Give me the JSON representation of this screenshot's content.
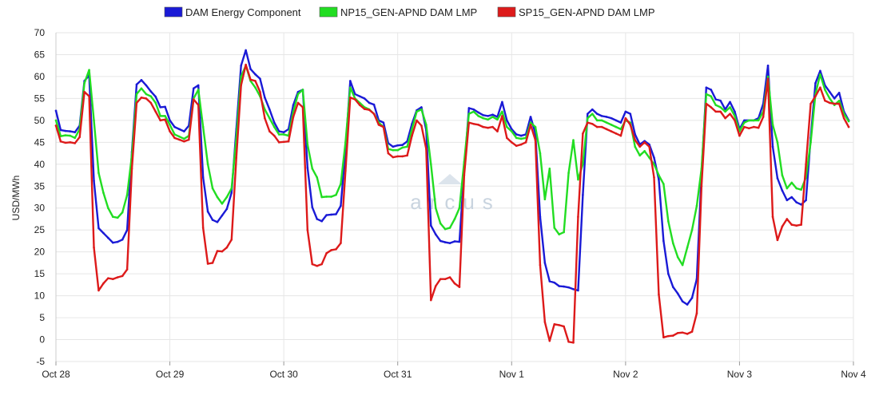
{
  "chart_data": {
    "type": "line",
    "title": "",
    "ylabel": "USD/MWh",
    "xlabel": "",
    "ylim": [
      -5,
      70
    ],
    "yticks": [
      -5,
      0,
      5,
      10,
      15,
      20,
      25,
      30,
      35,
      40,
      45,
      50,
      55,
      60,
      65,
      70
    ],
    "grid": true,
    "legend_position": "top",
    "x_ticks": [
      {
        "label": "Oct 28",
        "hour": 0
      },
      {
        "label": "Oct 29",
        "hour": 24
      },
      {
        "label": "Oct 30",
        "hour": 48
      },
      {
        "label": "Oct 31",
        "hour": 72
      },
      {
        "label": "Nov 1",
        "hour": 96
      },
      {
        "label": "Nov 2",
        "hour": 120
      },
      {
        "label": "Nov 3",
        "hour": 144
      },
      {
        "label": "Nov 4",
        "hour": 168
      }
    ],
    "watermark": "arcus",
    "series": [
      {
        "name": "DAM Energy Component",
        "color": "#1a1ad6",
        "values": [
          52.2,
          47.8,
          47.6,
          47.5,
          47.3,
          48.8,
          59.0,
          60.3,
          36.2,
          25.4,
          24.3,
          23.2,
          22.1,
          22.3,
          22.8,
          25.0,
          42.8,
          58.2,
          59.2,
          58.0,
          56.6,
          55.4,
          53.0,
          53.1,
          50.0,
          48.5,
          48.0,
          47.5,
          48.8,
          57.3,
          58.0,
          37.0,
          29.2,
          27.3,
          26.8,
          28.3,
          29.8,
          33.5,
          48.0,
          62.5,
          66.0,
          61.7,
          60.5,
          59.5,
          55.2,
          52.5,
          49.5,
          47.5,
          47.3,
          48.0,
          53.5,
          56.5,
          57.0,
          39.2,
          30.2,
          27.5,
          27.0,
          28.4,
          28.5,
          28.6,
          30.5,
          43.5,
          59.0,
          56.0,
          55.5,
          55.0,
          54.0,
          53.6,
          50.0,
          49.5,
          44.8,
          44.0,
          44.3,
          44.4,
          45.2,
          49.2,
          52.3,
          53.0,
          47.8,
          26.0,
          24.0,
          22.5,
          22.2,
          22.0,
          22.4,
          22.3,
          38.5,
          52.8,
          52.5,
          51.8,
          51.2,
          51.0,
          51.3,
          50.8,
          54.2,
          50.0,
          48.0,
          46.8,
          46.5,
          46.8,
          50.8,
          47.0,
          28.0,
          17.5,
          13.3,
          13.0,
          12.2,
          12.1,
          11.9,
          11.5,
          11.2,
          33.0,
          51.5,
          52.5,
          51.5,
          51.0,
          50.8,
          50.5,
          50.0,
          49.5,
          52.0,
          51.5,
          46.8,
          44.5,
          45.3,
          44.5,
          41.5,
          36.5,
          22.5,
          15.0,
          12.0,
          10.5,
          8.7,
          8.0,
          9.5,
          13.8,
          38.0,
          57.5,
          57.0,
          54.8,
          54.5,
          52.5,
          54.2,
          52.0,
          48.0,
          50.0,
          50.0,
          50.0,
          50.5,
          53.8,
          62.5,
          44.0,
          36.8,
          34.0,
          31.8,
          32.5,
          31.3,
          30.8,
          31.8,
          46.0,
          58.5,
          61.3,
          58.0,
          56.5,
          55.0,
          56.3,
          52.0,
          50.0
        ]
      },
      {
        "name": "NP15_GEN-APND DAM LMP",
        "color": "#22dd22",
        "values": [
          50.0,
          46.4,
          46.6,
          46.5,
          46.0,
          48.0,
          58.5,
          61.5,
          50.0,
          38.0,
          33.5,
          30.0,
          28.0,
          27.8,
          29.0,
          33.0,
          42.0,
          56.0,
          57.3,
          56.0,
          55.5,
          54.0,
          51.0,
          51.0,
          49.0,
          46.8,
          46.3,
          45.8,
          46.5,
          55.0,
          57.0,
          48.5,
          40.0,
          34.5,
          32.5,
          31.0,
          32.5,
          34.5,
          46.0,
          60.0,
          62.5,
          59.0,
          57.5,
          55.5,
          52.5,
          50.5,
          48.5,
          46.8,
          46.8,
          46.5,
          52.0,
          56.0,
          57.0,
          44.5,
          39.0,
          37.0,
          32.5,
          32.6,
          32.6,
          33.0,
          35.5,
          45.0,
          57.5,
          55.0,
          54.0,
          53.0,
          52.5,
          51.5,
          49.5,
          48.5,
          43.5,
          43.2,
          43.2,
          43.8,
          44.0,
          48.0,
          52.0,
          52.5,
          49.0,
          40.0,
          30.0,
          26.5,
          25.2,
          25.5,
          27.5,
          30.0,
          40.5,
          51.5,
          52.0,
          51.0,
          50.5,
          50.2,
          50.8,
          50.2,
          52.0,
          48.5,
          47.5,
          46.0,
          45.8,
          46.0,
          49.5,
          48.5,
          42.5,
          32.0,
          39.0,
          25.5,
          24.0,
          24.5,
          38.0,
          45.5,
          36.5,
          40.0,
          50.5,
          51.5,
          50.0,
          50.0,
          49.5,
          49.0,
          48.5,
          48.0,
          50.0,
          49.5,
          44.0,
          42.0,
          43.0,
          41.5,
          40.0,
          37.5,
          35.5,
          27.0,
          22.0,
          18.8,
          17.0,
          21.0,
          25.0,
          30.5,
          39.0,
          56.0,
          55.5,
          53.5,
          53.0,
          52.0,
          53.0,
          51.0,
          47.5,
          49.5,
          50.0,
          50.0,
          50.0,
          52.0,
          60.0,
          49.0,
          45.0,
          37.5,
          34.5,
          35.8,
          34.5,
          34.2,
          37.0,
          45.0,
          56.0,
          60.5,
          57.0,
          55.0,
          53.5,
          54.5,
          51.5,
          49.8
        ]
      },
      {
        "name": "SP15_GEN-APND DAM LMP",
        "color": "#dd1a1a",
        "values": [
          48.8,
          45.2,
          44.9,
          45.0,
          44.8,
          46.2,
          56.5,
          55.5,
          21.0,
          11.2,
          12.8,
          14.0,
          13.8,
          14.2,
          14.5,
          16.0,
          39.0,
          54.0,
          55.2,
          55.0,
          54.0,
          52.0,
          50.0,
          50.2,
          47.5,
          46.0,
          45.6,
          45.2,
          45.6,
          54.8,
          53.5,
          25.5,
          17.3,
          17.5,
          20.2,
          20.1,
          21.0,
          22.8,
          41.5,
          58.0,
          62.7,
          59.3,
          59.0,
          56.5,
          50.5,
          47.5,
          46.5,
          45.0,
          45.1,
          45.2,
          50.8,
          54.0,
          53.0,
          25.0,
          17.2,
          16.8,
          17.2,
          19.7,
          20.4,
          20.6,
          22.0,
          38.5,
          55.2,
          54.8,
          53.5,
          52.6,
          52.4,
          51.5,
          49.0,
          48.5,
          42.5,
          41.6,
          41.8,
          41.8,
          42.0,
          46.5,
          50.0,
          48.8,
          43.5,
          9.0,
          12.2,
          13.8,
          13.8,
          14.2,
          12.8,
          12.0,
          37.5,
          49.5,
          49.2,
          49.0,
          48.5,
          48.3,
          48.5,
          47.5,
          51.0,
          46.0,
          45.0,
          44.2,
          44.5,
          45.0,
          49.0,
          45.5,
          17.0,
          4.0,
          -0.3,
          3.5,
          3.3,
          3.0,
          -0.5,
          -0.7,
          28.0,
          47.0,
          49.5,
          49.2,
          48.5,
          48.5,
          48.0,
          47.5,
          47.0,
          46.5,
          50.5,
          49.0,
          45.5,
          44.0,
          45.0,
          44.0,
          37.0,
          10.3,
          0.5,
          0.8,
          0.9,
          1.5,
          1.6,
          1.3,
          1.8,
          6.0,
          35.0,
          53.8,
          53.0,
          52.0,
          52.0,
          50.5,
          51.5,
          50.0,
          46.5,
          48.5,
          48.2,
          48.5,
          48.3,
          50.8,
          59.5,
          28.0,
          22.7,
          25.8,
          27.5,
          26.2,
          26.0,
          26.2,
          40.0,
          53.8,
          55.5,
          57.5,
          54.5,
          54.0,
          53.8,
          53.8,
          50.5,
          48.5
        ]
      }
    ]
  }
}
